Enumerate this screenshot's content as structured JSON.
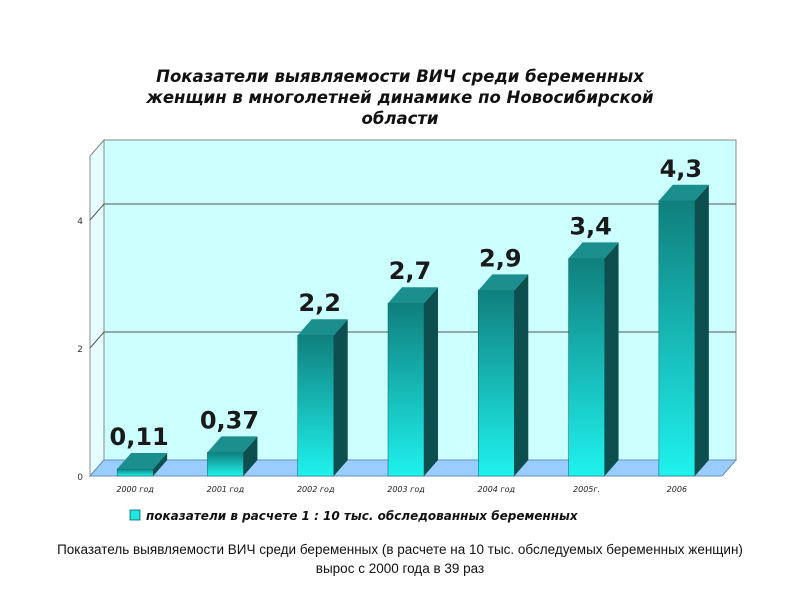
{
  "chart_data": {
    "type": "bar",
    "title": "Показатели выявляемости ВИЧ среди беременных женщин в многолетней динамике по Новосибирской области",
    "categories": [
      "2000 год",
      "2001 год",
      "2002 год",
      "2003 год",
      "2004 год",
      "2005г.",
      "2006"
    ],
    "series": [
      {
        "name": "показатели в расчете 1 : 10 тыс. обследованных беременных",
        "values": [
          0.11,
          0.37,
          2.2,
          2.7,
          2.9,
          3.4,
          4.3
        ],
        "labels": [
          "0,11",
          "0,37",
          "2,2",
          "2,7",
          "2,9",
          "3,4",
          "4,3"
        ]
      }
    ],
    "y_ticks": [
      "0",
      "2",
      "4"
    ],
    "ylim": [
      0,
      5
    ],
    "grid": true,
    "legend_position": "bottom",
    "colors": {
      "bar_front": "#11a9a6",
      "bar_top": "#1a8f8d",
      "bar_side": "#0c4f4e",
      "plot_background": "#ccffff",
      "floor": "#99ccff",
      "grid": "#555555"
    }
  },
  "caption": "Показатель выявляемости ВИЧ среди беременных (в расчете на 10 тыс. обследуемых беременных женщин) вырос с 2000 года в 39 раз"
}
